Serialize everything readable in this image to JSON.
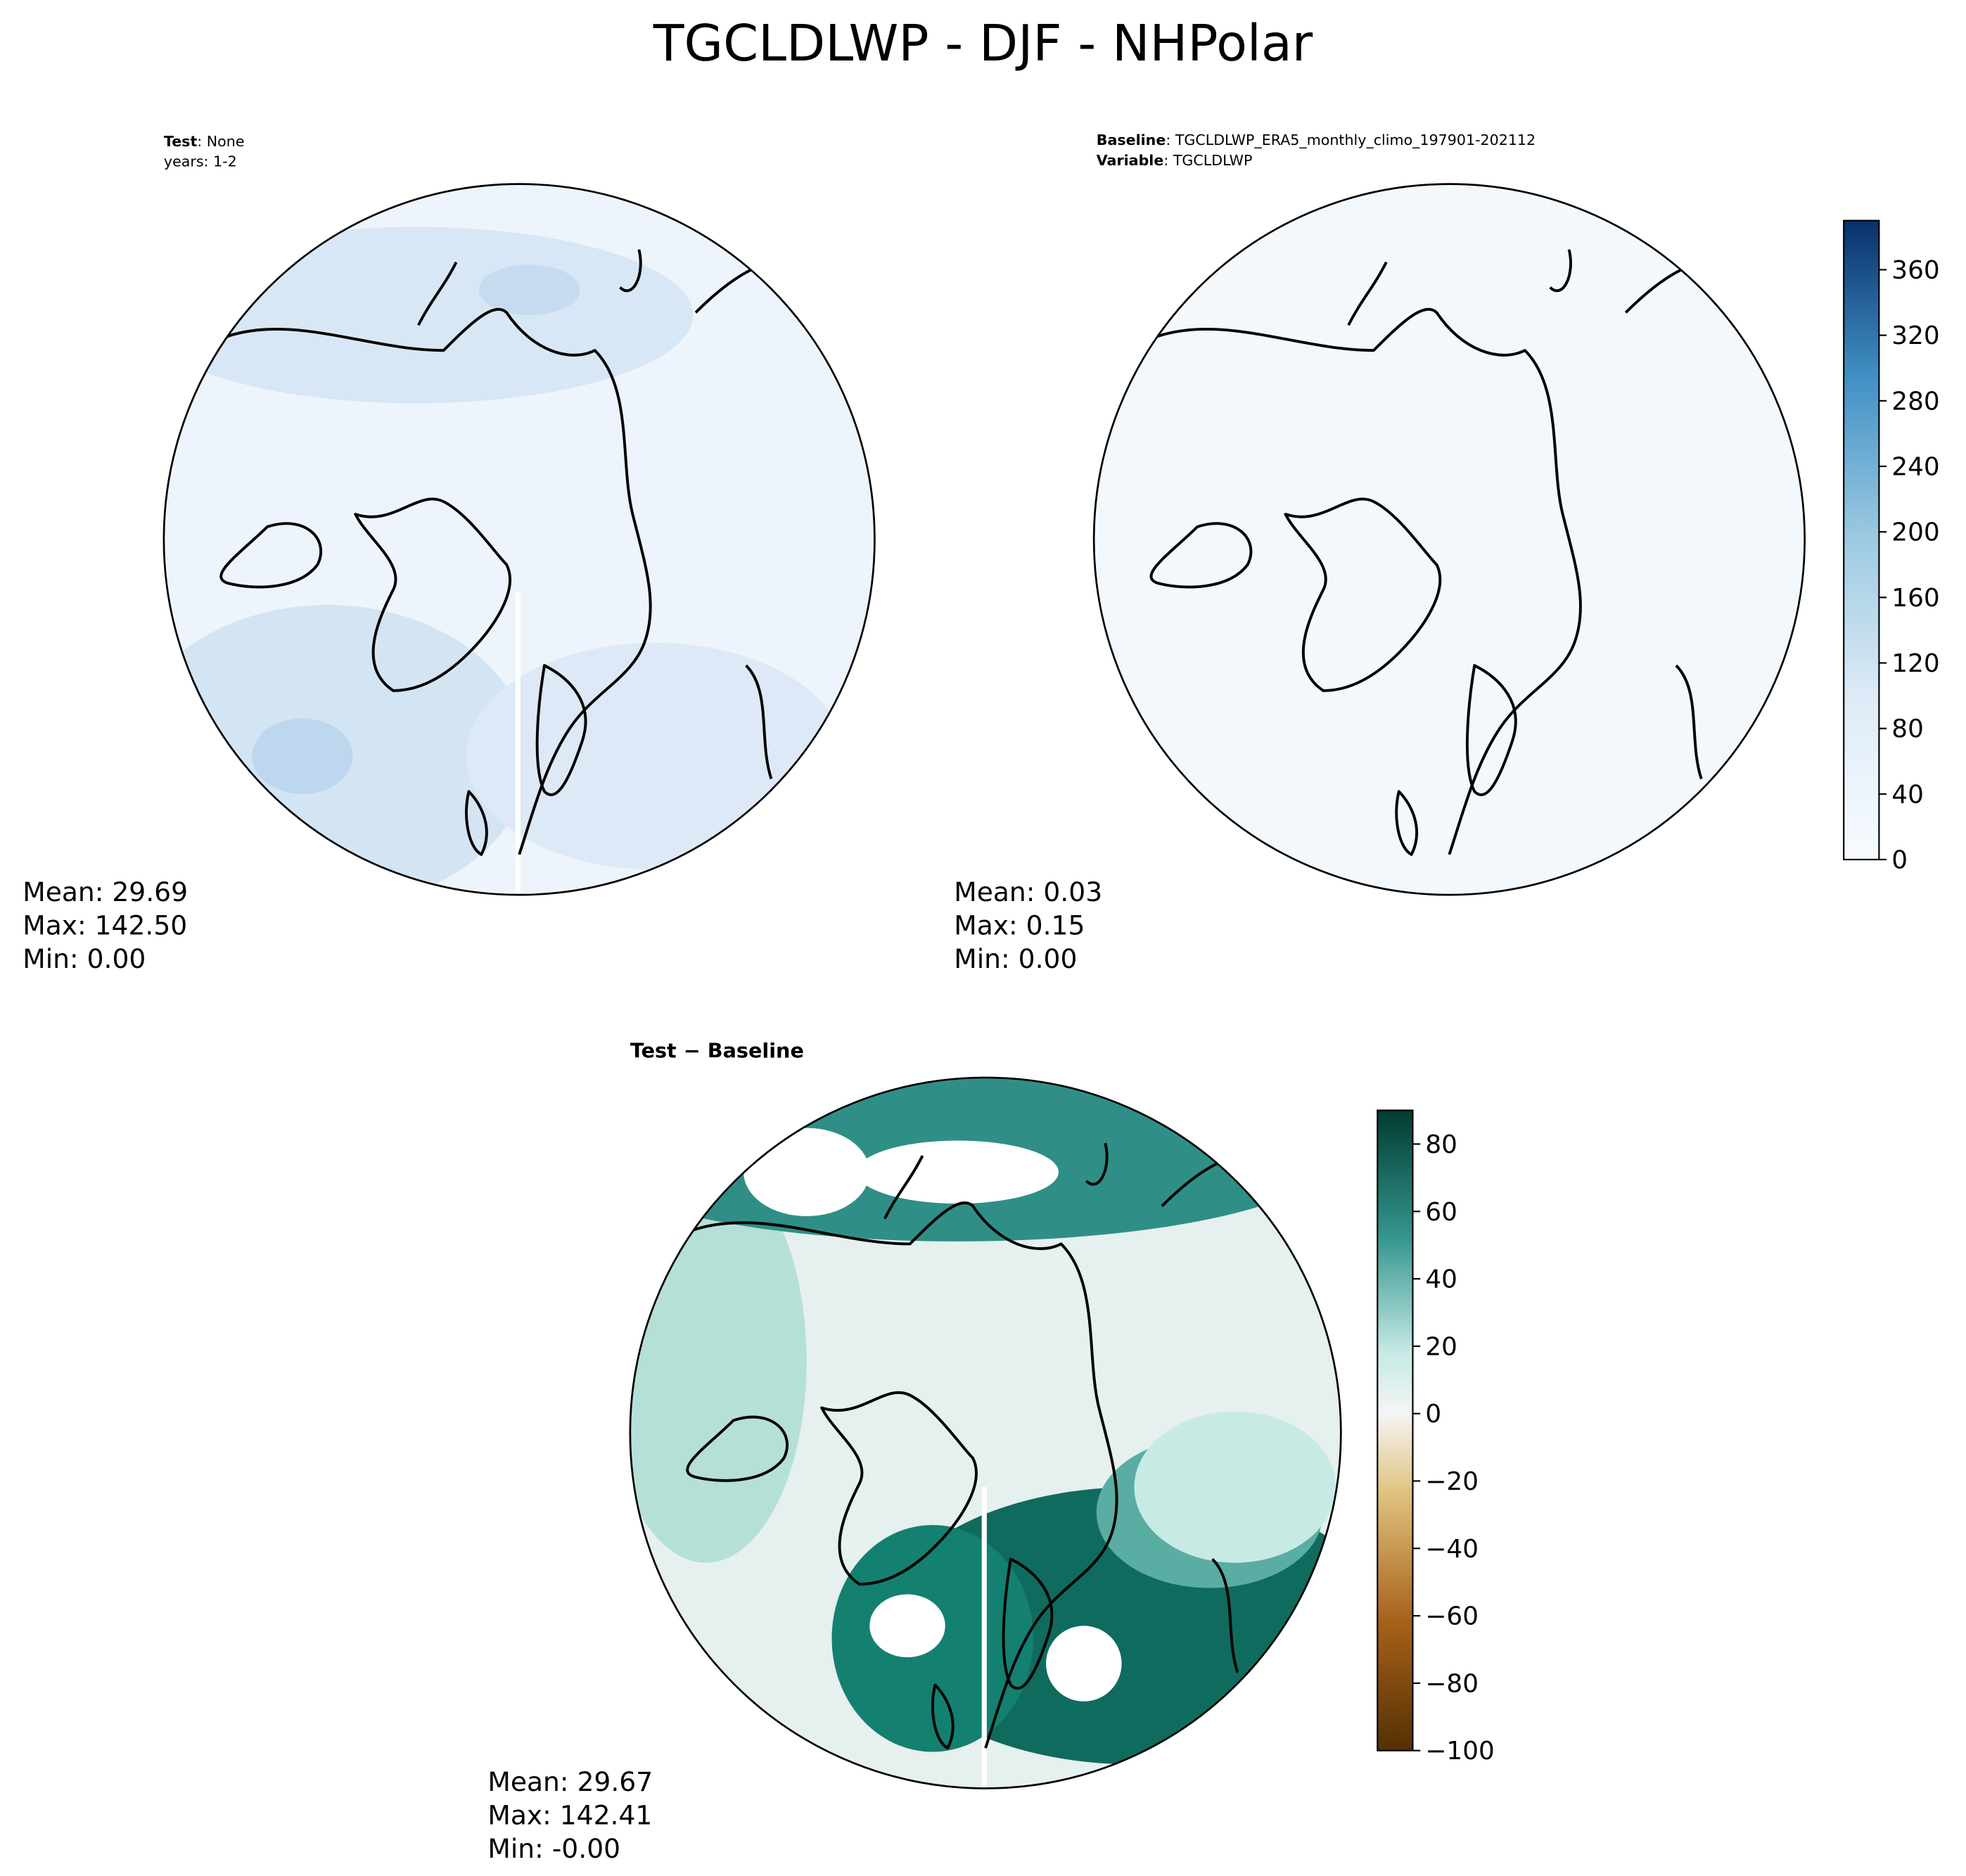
{
  "title": "TGCLDLWP - DJF - NHPolar",
  "panels": [
    {
      "header": [
        {
          "bold": "Test",
          "rest": ": None"
        },
        {
          "bold": "",
          "rest": "years: 1-2"
        }
      ],
      "stats": [
        "Mean: 29.69",
        "Max: 142.50",
        "Min:  0.00"
      ]
    },
    {
      "header": [
        {
          "bold": "Baseline",
          "rest": ": TGCLDLWP_ERA5_monthly_climo_197901-202112"
        },
        {
          "bold": "Variable",
          "rest": ": TGCLDLWP"
        }
      ],
      "stats": [
        "Mean:  0.03",
        "Max:  0.15",
        "Min:  0.00"
      ]
    },
    {
      "title": "Test − Baseline",
      "stats": [
        "Mean: 29.67",
        "Max: 142.41",
        "Min: -0.00"
      ]
    }
  ],
  "colorbars": [
    {
      "range": [
        0,
        390
      ],
      "ticks": [
        0,
        40,
        80,
        120,
        160,
        200,
        240,
        280,
        320,
        360
      ]
    },
    {
      "range": [
        -100,
        90
      ],
      "ticks": [
        {
          "value": -100,
          "label": "−100"
        },
        {
          "value": -80,
          "label": "−80"
        },
        {
          "value": -60,
          "label": "−60"
        },
        {
          "value": -40,
          "label": "−40"
        },
        {
          "value": -20,
          "label": "−20"
        },
        0,
        20,
        40,
        60,
        80
      ]
    }
  ]
}
